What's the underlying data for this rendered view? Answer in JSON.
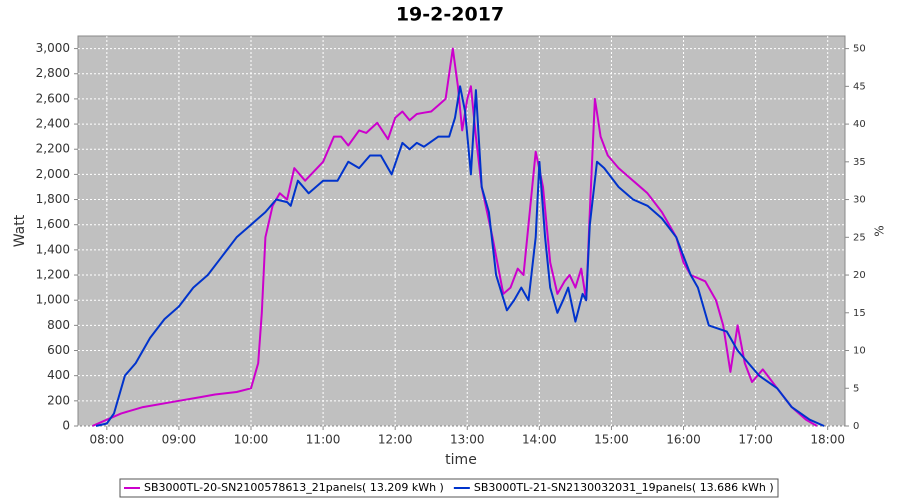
{
  "chart_data": {
    "type": "line",
    "title": "19-2-2017",
    "x_label": "time",
    "y_label": "Watt",
    "y2_label": "%",
    "xlim": [
      7.6,
      18.24
    ],
    "xticks": [
      {
        "value": 8,
        "label": "08:00"
      },
      {
        "value": 9,
        "label": "09:00"
      },
      {
        "value": 10,
        "label": "10:00"
      },
      {
        "value": 11,
        "label": "11:00"
      },
      {
        "value": 12,
        "label": "12:00"
      },
      {
        "value": 13,
        "label": "13:00"
      },
      {
        "value": 14,
        "label": "14:00"
      },
      {
        "value": 15,
        "label": "15:00"
      },
      {
        "value": 16,
        "label": "16:00"
      },
      {
        "value": 17,
        "label": "17:00"
      },
      {
        "value": 18,
        "label": "18:00"
      }
    ],
    "ylim": [
      0,
      3100
    ],
    "yticks": [
      0,
      200,
      400,
      600,
      800,
      {
        "value": 1000,
        "label": "1,000"
      },
      {
        "value": 1200,
        "label": "1,200"
      },
      {
        "value": 1400,
        "label": "1,400"
      },
      {
        "value": 1600,
        "label": "1,600"
      },
      {
        "value": 1800,
        "label": "1,800"
      },
      {
        "value": 2000,
        "label": "2,000"
      },
      {
        "value": 2200,
        "label": "2,200"
      },
      {
        "value": 2400,
        "label": "2,400"
      },
      {
        "value": 2600,
        "label": "2,600"
      },
      {
        "value": 2800,
        "label": "2,800"
      },
      {
        "value": 3000,
        "label": "3,000"
      }
    ],
    "y2lim": [
      0,
      51.67
    ],
    "y2ticks": [
      0,
      5,
      10,
      15,
      20,
      25,
      30,
      35,
      40,
      45,
      50
    ],
    "grid": true,
    "legend": "bottom",
    "series": [
      {
        "name": "SB3000TL-20-SN2100578613_21panels( 13.209 kWh )",
        "color": "#cc00cc",
        "x": [
          7.8,
          8.0,
          8.2,
          8.5,
          9.0,
          9.3,
          9.5,
          9.8,
          10.0,
          10.1,
          10.15,
          10.2,
          10.3,
          10.4,
          10.5,
          10.6,
          10.75,
          11.0,
          11.15,
          11.25,
          11.35,
          11.5,
          11.6,
          11.75,
          11.9,
          12.0,
          12.1,
          12.2,
          12.3,
          12.4,
          12.5,
          12.6,
          12.7,
          12.8,
          12.87,
          12.93,
          13.0,
          13.05,
          13.12,
          13.2,
          13.35,
          13.5,
          13.6,
          13.7,
          13.78,
          13.85,
          13.95,
          14.05,
          14.15,
          14.25,
          14.35,
          14.42,
          14.5,
          14.58,
          14.65,
          14.7,
          14.77,
          14.85,
          14.95,
          15.1,
          15.3,
          15.5,
          15.7,
          15.9,
          16.0,
          16.1,
          16.3,
          16.45,
          16.55,
          16.65,
          16.75,
          16.85,
          16.95,
          17.1,
          17.3,
          17.5,
          17.7,
          17.85
        ],
        "values": [
          0,
          50,
          100,
          150,
          200,
          230,
          250,
          270,
          300,
          500,
          900,
          1500,
          1750,
          1850,
          1800,
          2050,
          1950,
          2100,
          2300,
          2300,
          2230,
          2350,
          2330,
          2410,
          2280,
          2450,
          2500,
          2430,
          2480,
          2490,
          2500,
          2550,
          2600,
          3000,
          2700,
          2350,
          2600,
          2700,
          2300,
          1900,
          1500,
          1050,
          1100,
          1250,
          1200,
          1600,
          2180,
          1900,
          1300,
          1050,
          1150,
          1200,
          1100,
          1250,
          1000,
          1700,
          2600,
          2300,
          2150,
          2050,
          1950,
          1850,
          1700,
          1500,
          1300,
          1200,
          1150,
          1000,
          800,
          430,
          800,
          500,
          350,
          450,
          300,
          150,
          50,
          0
        ]
      },
      {
        "name": "SB3000TL-21-SN2130032031_19panels( 13.686 kWh )",
        "color": "#0033cc",
        "x": [
          7.85,
          8.0,
          8.1,
          8.25,
          8.4,
          8.6,
          8.8,
          9.0,
          9.2,
          9.4,
          9.6,
          9.8,
          10.0,
          10.2,
          10.35,
          10.5,
          10.55,
          10.65,
          10.8,
          11.0,
          11.2,
          11.35,
          11.5,
          11.65,
          11.8,
          11.95,
          12.1,
          12.2,
          12.3,
          12.4,
          12.6,
          12.75,
          12.83,
          12.9,
          12.97,
          13.05,
          13.12,
          13.2,
          13.3,
          13.4,
          13.55,
          13.65,
          13.75,
          13.85,
          13.95,
          14.0,
          14.08,
          14.15,
          14.25,
          14.33,
          14.4,
          14.5,
          14.6,
          14.65,
          14.7,
          14.8,
          14.9,
          15.1,
          15.3,
          15.5,
          15.7,
          15.9,
          16.1,
          16.2,
          16.35,
          16.6,
          16.75,
          16.9,
          17.05,
          17.3,
          17.5,
          17.75,
          17.95
        ],
        "values": [
          0,
          20,
          100,
          400,
          500,
          700,
          850,
          950,
          1100,
          1200,
          1350,
          1500,
          1600,
          1700,
          1800,
          1780,
          1750,
          1950,
          1850,
          1950,
          1950,
          2100,
          2050,
          2150,
          2150,
          2000,
          2250,
          2200,
          2250,
          2220,
          2300,
          2300,
          2450,
          2700,
          2500,
          2000,
          2670,
          1900,
          1700,
          1200,
          920,
          1000,
          1100,
          1000,
          1500,
          2100,
          1500,
          1100,
          900,
          1000,
          1100,
          830,
          1050,
          1000,
          1600,
          2100,
          2050,
          1900,
          1800,
          1750,
          1650,
          1500,
          1200,
          1100,
          800,
          750,
          600,
          500,
          400,
          300,
          150,
          50,
          0
        ]
      }
    ]
  }
}
